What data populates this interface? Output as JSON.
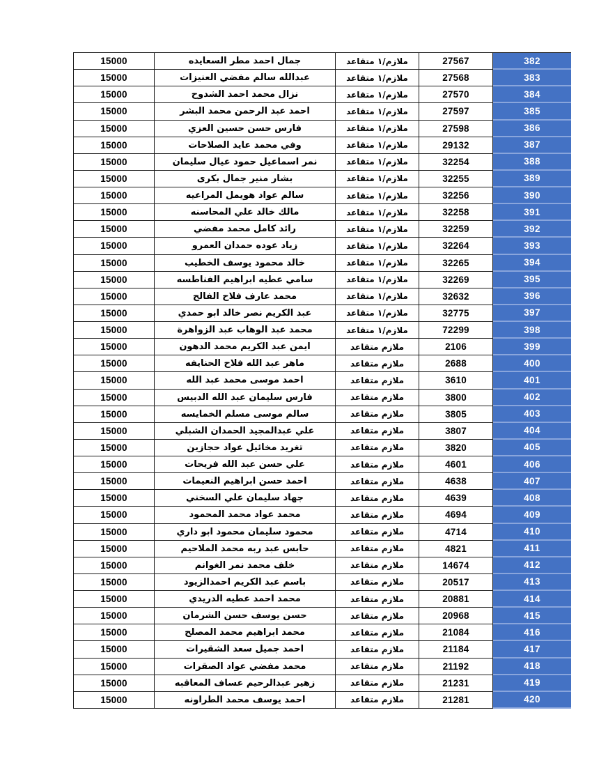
{
  "document": {
    "type": "pension-list-table-page",
    "language": "ar",
    "background_color": "#ffffff"
  },
  "colors": {
    "serial_column_fill": "#4472C4",
    "serial_column_text": "#ffffff",
    "cell_border": "#1a1a1a",
    "serial_row_separator": "#89a5dc",
    "body_text": "#000000"
  },
  "table": {
    "headers_visible": false,
    "column_semantics_rtl_order": [
      "serial",
      "file_number",
      "rank",
      "full_name",
      "amount"
    ],
    "rank_values_used": [
      "ملازم/١ متقاعد",
      "ملازم متقاعد"
    ],
    "amount_constant": "15000",
    "serial_range": "382–420",
    "row_count": 39
  },
  "rows": [
    {
      "serial": "382",
      "file_number": "27567",
      "rank": "ملازم/١ متقاعد",
      "name": "جمال احمد مطر السعايده",
      "amount": "15000"
    },
    {
      "serial": "383",
      "file_number": "27568",
      "rank": "ملازم/١ متقاعد",
      "name": "عبدالله سالم مفضي العنيزات",
      "amount": "15000"
    },
    {
      "serial": "384",
      "file_number": "27570",
      "rank": "ملازم/١ متقاعد",
      "name": "نزال محمد احمد الشدوح",
      "amount": "15000"
    },
    {
      "serial": "385",
      "file_number": "27597",
      "rank": "ملازم/١ متقاعد",
      "name": "احمد عبد الرحمن محمد البشر",
      "amount": "15000"
    },
    {
      "serial": "386",
      "file_number": "27598",
      "rank": "ملازم/١ متقاعد",
      "name": "فارس حسن حسين العزي",
      "amount": "15000"
    },
    {
      "serial": "387",
      "file_number": "29132",
      "rank": "ملازم/١ متقاعد",
      "name": "وفي محمد عايد الصلاحات",
      "amount": "15000"
    },
    {
      "serial": "388",
      "file_number": "32254",
      "rank": "ملازم/١ متقاعد",
      "name": "نمر اسماعيل حمود عيال سليمان",
      "amount": "15000"
    },
    {
      "serial": "389",
      "file_number": "32255",
      "rank": "ملازم/١ متقاعد",
      "name": "بشار منير جمال بكرى",
      "amount": "15000"
    },
    {
      "serial": "390",
      "file_number": "32256",
      "rank": "ملازم/١ متقاعد",
      "name": "سالم عواد هويمل المراعيه",
      "amount": "15000"
    },
    {
      "serial": "391",
      "file_number": "32258",
      "rank": "ملازم/١ متقاعد",
      "name": "مالك خالد علي المحاسنه",
      "amount": "15000"
    },
    {
      "serial": "392",
      "file_number": "32259",
      "rank": "ملازم/١ متقاعد",
      "name": "رائد كامل محمد مفضي",
      "amount": "15000"
    },
    {
      "serial": "393",
      "file_number": "32264",
      "rank": "ملازم/١ متقاعد",
      "name": "زياد عوده حمدان العمرو",
      "amount": "15000"
    },
    {
      "serial": "394",
      "file_number": "32265",
      "rank": "ملازم/١ متقاعد",
      "name": "خالد محمود يوسف الخطيب",
      "amount": "15000"
    },
    {
      "serial": "395",
      "file_number": "32269",
      "rank": "ملازم/١ متقاعد",
      "name": "سامي عطيه ابراهيم الفناطسه",
      "amount": "15000"
    },
    {
      "serial": "396",
      "file_number": "32632",
      "rank": "ملازم/١ متقاعد",
      "name": "محمد عارف فلاح الفالح",
      "amount": "15000"
    },
    {
      "serial": "397",
      "file_number": "32775",
      "rank": "ملازم/١ متقاعد",
      "name": "عبد الكريم نصر خالد ابو حمدي",
      "amount": "15000"
    },
    {
      "serial": "398",
      "file_number": "72299",
      "rank": "ملازم/١ متقاعد",
      "name": "محمد عبد الوهاب عبد الزواهرة",
      "amount": "15000"
    },
    {
      "serial": "399",
      "file_number": "2106",
      "rank": "ملازم متقاعد",
      "name": "ايمن عبد الكريم محمد الدهون",
      "amount": "15000"
    },
    {
      "serial": "400",
      "file_number": "2688",
      "rank": "ملازم متقاعد",
      "name": "ماهر عبد الله فلاح الحنايفه",
      "amount": "15000"
    },
    {
      "serial": "401",
      "file_number": "3610",
      "rank": "ملازم متقاعد",
      "name": "احمد موسى محمد عبد الله",
      "amount": "15000"
    },
    {
      "serial": "402",
      "file_number": "3800",
      "rank": "ملازم متقاعد",
      "name": "فارس سليمان عبد الله الدبيس",
      "amount": "15000"
    },
    {
      "serial": "403",
      "file_number": "3805",
      "rank": "ملازم متقاعد",
      "name": "سالم موسى مسلم الخمايسه",
      "amount": "15000"
    },
    {
      "serial": "404",
      "file_number": "3807",
      "rank": "ملازم متقاعد",
      "name": "علي عبدالمجيد الحمدان الشبلي",
      "amount": "15000"
    },
    {
      "serial": "405",
      "file_number": "3820",
      "rank": "ملازم متقاعد",
      "name": "تغريد مخائيل عواد حجازين",
      "amount": "15000"
    },
    {
      "serial": "406",
      "file_number": "4601",
      "rank": "ملازم متقاعد",
      "name": "علي حسن عبد الله فريحات",
      "amount": "15000"
    },
    {
      "serial": "407",
      "file_number": "4638",
      "rank": "ملازم متقاعد",
      "name": "احمد حسن ابراهيم النعيمات",
      "amount": "15000"
    },
    {
      "serial": "408",
      "file_number": "4639",
      "rank": "ملازم متقاعد",
      "name": "جهاد سليمان علي السخني",
      "amount": "15000"
    },
    {
      "serial": "409",
      "file_number": "4694",
      "rank": "ملازم متقاعد",
      "name": "محمد عواد محمد المحمود",
      "amount": "15000"
    },
    {
      "serial": "410",
      "file_number": "4714",
      "rank": "ملازم متقاعد",
      "name": "محمود سليمان محمود ابو داري",
      "amount": "15000"
    },
    {
      "serial": "411",
      "file_number": "4821",
      "rank": "ملازم متقاعد",
      "name": "حابس عبد ربه محمد الملاحيم",
      "amount": "15000"
    },
    {
      "serial": "412",
      "file_number": "14674",
      "rank": "ملازم متقاعد",
      "name": "خلف محمد نمر الغوانم",
      "amount": "15000"
    },
    {
      "serial": "413",
      "file_number": "20517",
      "rank": "ملازم متقاعد",
      "name": "باسم عبد الكريم احمدالزيود",
      "amount": "15000"
    },
    {
      "serial": "414",
      "file_number": "20881",
      "rank": "ملازم متقاعد",
      "name": "محمد احمد عطيه الدريدي",
      "amount": "15000"
    },
    {
      "serial": "415",
      "file_number": "20968",
      "rank": "ملازم متقاعد",
      "name": "حسن يوسف حسن الشرمان",
      "amount": "15000"
    },
    {
      "serial": "416",
      "file_number": "21084",
      "rank": "ملازم متقاعد",
      "name": "محمد ابراهيم محمد المصلح",
      "amount": "15000"
    },
    {
      "serial": "417",
      "file_number": "21184",
      "rank": "ملازم متقاعد",
      "name": "احمد جميل سعد الشقيرات",
      "amount": "15000"
    },
    {
      "serial": "418",
      "file_number": "21192",
      "rank": "ملازم متقاعد",
      "name": "محمد مفضي عواد الصقرات",
      "amount": "15000"
    },
    {
      "serial": "419",
      "file_number": "21231",
      "rank": "ملازم متقاعد",
      "name": "زهير عبدالرحيم عساف المعاقبه",
      "amount": "15000"
    },
    {
      "serial": "420",
      "file_number": "21281",
      "rank": "ملازم متقاعد",
      "name": "احمد يوسف محمد الطراونه",
      "amount": "15000"
    }
  ]
}
